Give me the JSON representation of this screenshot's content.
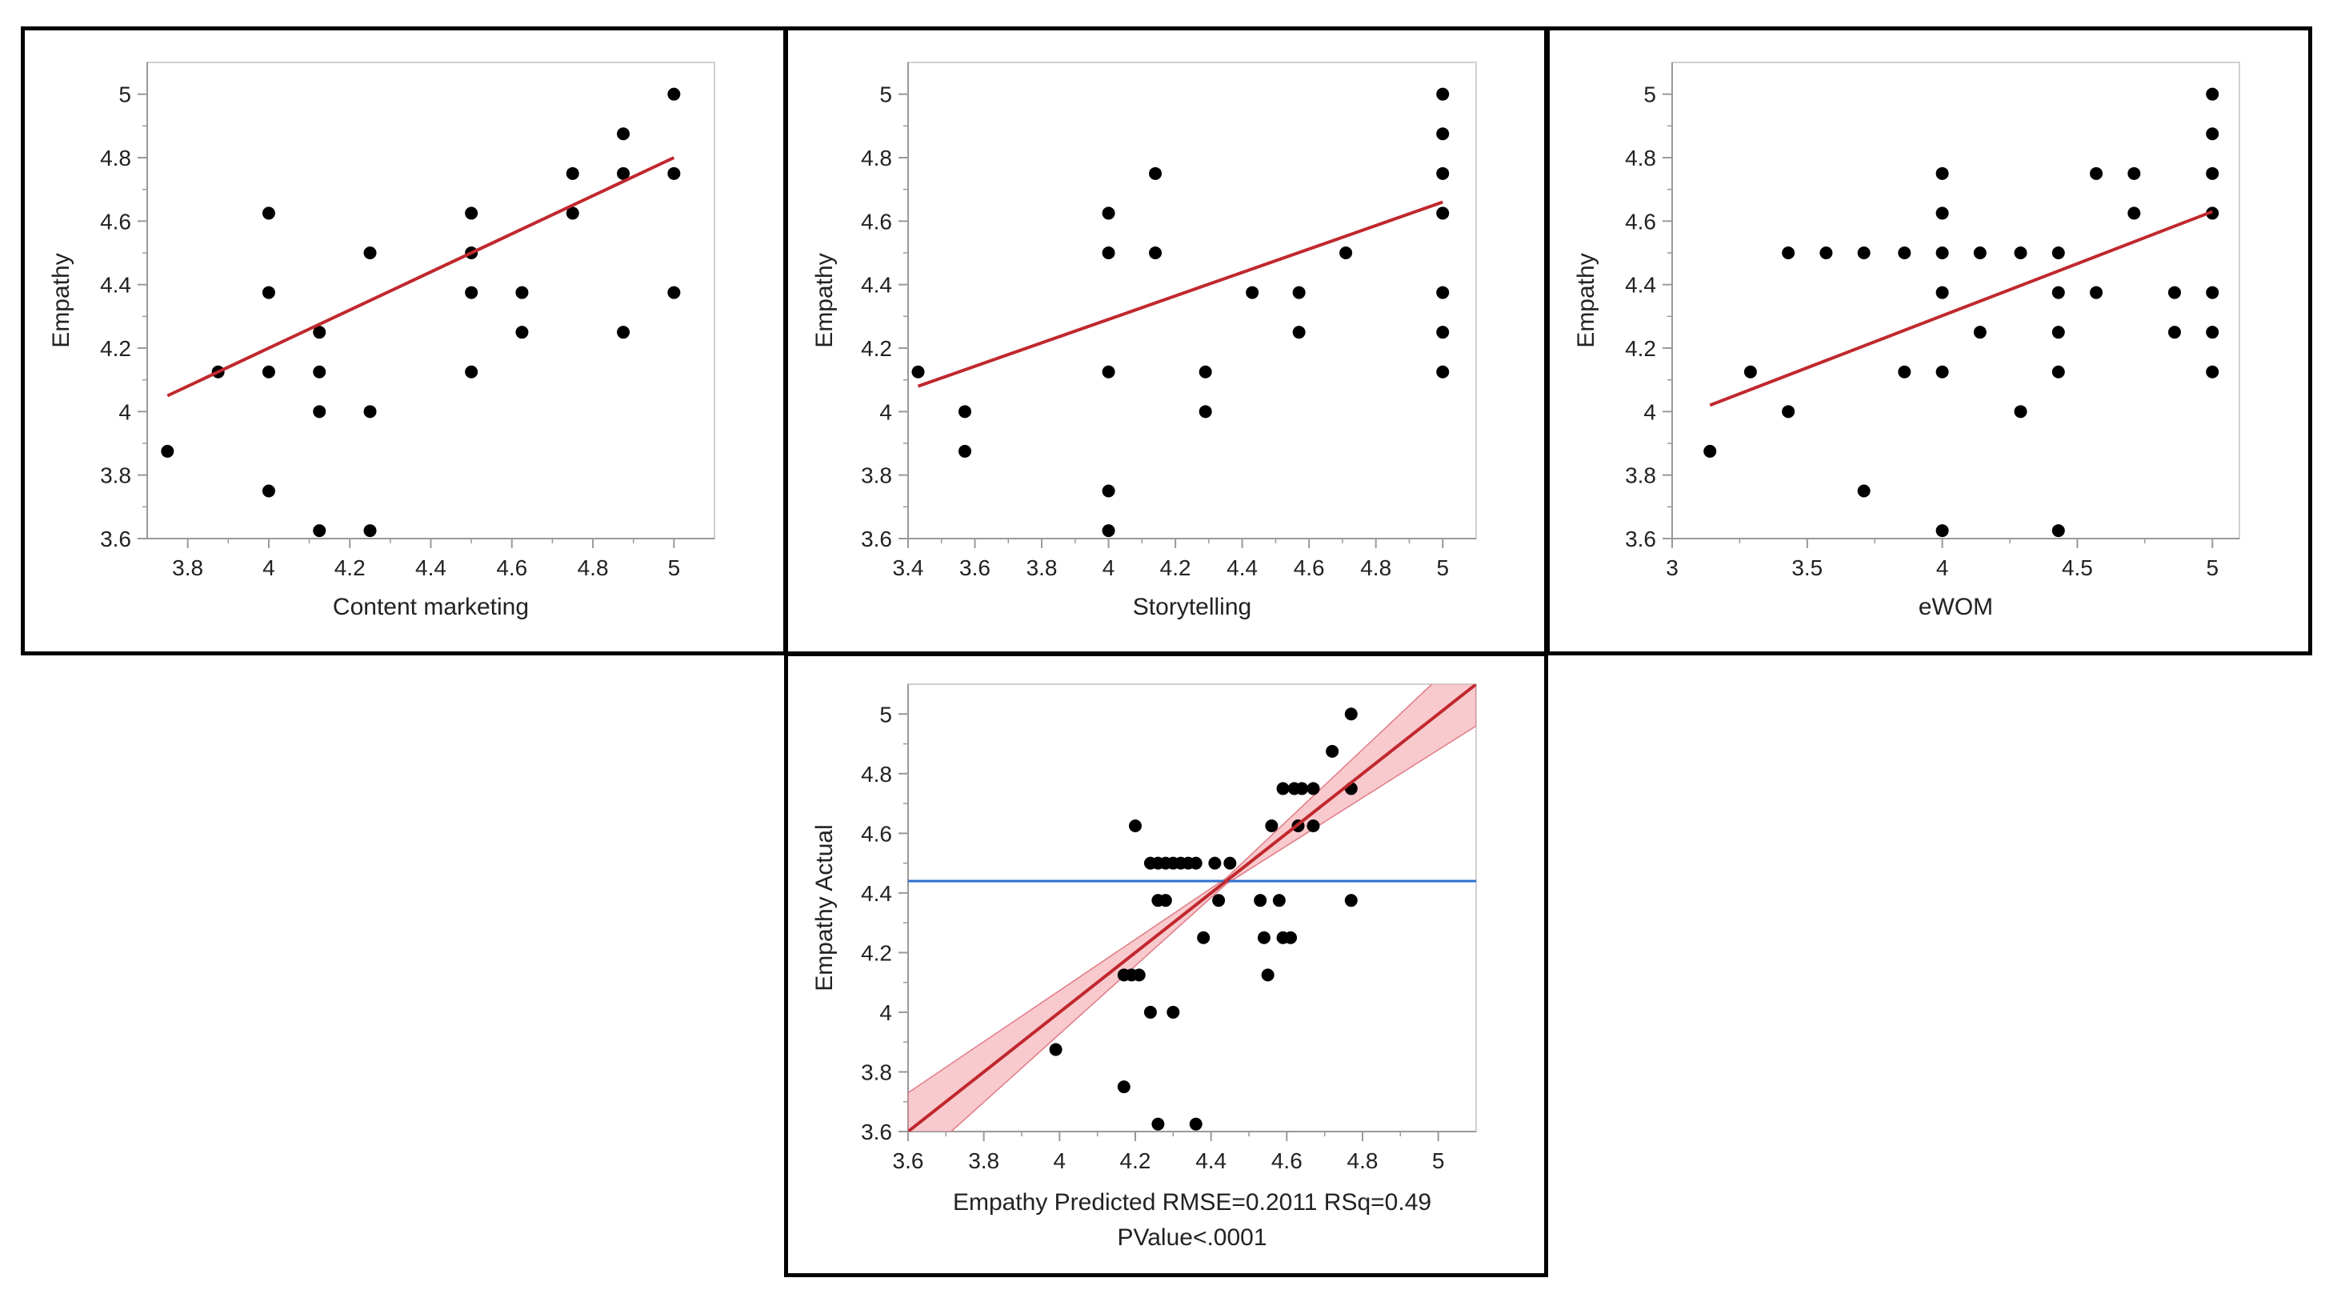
{
  "colors": {
    "point": "#000000",
    "fit_line": "#c0282d",
    "confidence_band": "#f4a6ae",
    "mean_line": "#2e6fcf",
    "axis": "#999999"
  },
  "chart_data": [
    {
      "type": "scatter",
      "xlabel": "Content marketing",
      "ylabel": "Empathy",
      "xlim": [
        3.7,
        5.1
      ],
      "ylim": [
        3.6,
        5.1
      ],
      "x_ticks": [
        3.8,
        4,
        4.2,
        4.4,
        4.6,
        4.8,
        5
      ],
      "y_ticks": [
        3.6,
        3.8,
        4,
        4.2,
        4.4,
        4.6,
        4.8,
        5
      ],
      "x_tick_labels": [
        "3.8",
        "4",
        "4.2",
        "4.4",
        "4.6",
        "4.8",
        "5"
      ],
      "y_tick_labels": [
        "3.6",
        "3.8",
        "4",
        "4.2",
        "4.4",
        "4.6",
        "4.8",
        "5"
      ],
      "grid": false,
      "points": [
        [
          3.75,
          3.875
        ],
        [
          3.875,
          4.125
        ],
        [
          4.0,
          4.625
        ],
        [
          4.0,
          4.375
        ],
        [
          4.0,
          4.125
        ],
        [
          4.0,
          3.75
        ],
        [
          4.125,
          4.25
        ],
        [
          4.125,
          4.125
        ],
        [
          4.125,
          4.0
        ],
        [
          4.125,
          3.625
        ],
        [
          4.25,
          4.5
        ],
        [
          4.25,
          4.0
        ],
        [
          4.25,
          3.625
        ],
        [
          4.5,
          4.625
        ],
        [
          4.5,
          4.5
        ],
        [
          4.5,
          4.375
        ],
        [
          4.5,
          4.125
        ],
        [
          4.625,
          4.375
        ],
        [
          4.625,
          4.25
        ],
        [
          4.75,
          4.75
        ],
        [
          4.75,
          4.625
        ],
        [
          4.875,
          4.875
        ],
        [
          4.875,
          4.75
        ],
        [
          4.875,
          4.25
        ],
        [
          5.0,
          5.0
        ],
        [
          5.0,
          4.75
        ],
        [
          5.0,
          4.375
        ]
      ],
      "fit_line": {
        "x": [
          3.75,
          5.0
        ],
        "y": [
          4.05,
          4.8
        ]
      }
    },
    {
      "type": "scatter",
      "xlabel": "Storytelling",
      "ylabel": "Empathy",
      "xlim": [
        3.4,
        5.1
      ],
      "ylim": [
        3.6,
        5.1
      ],
      "x_ticks": [
        3.4,
        3.6,
        3.8,
        4,
        4.2,
        4.4,
        4.6,
        4.8,
        5
      ],
      "y_ticks": [
        3.6,
        3.8,
        4,
        4.2,
        4.4,
        4.6,
        4.8,
        5
      ],
      "x_tick_labels": [
        "3.4",
        "3.6",
        "3.8",
        "4",
        "4.2",
        "4.4",
        "4.6",
        "4.8",
        "5"
      ],
      "y_tick_labels": [
        "3.6",
        "3.8",
        "4",
        "4.2",
        "4.4",
        "4.6",
        "4.8",
        "5"
      ],
      "grid": false,
      "points": [
        [
          3.43,
          4.125
        ],
        [
          3.57,
          4.0
        ],
        [
          3.57,
          3.875
        ],
        [
          4.0,
          4.625
        ],
        [
          4.0,
          4.5
        ],
        [
          4.0,
          4.125
        ],
        [
          4.0,
          3.75
        ],
        [
          4.0,
          3.625
        ],
        [
          4.14,
          4.75
        ],
        [
          4.14,
          4.5
        ],
        [
          4.29,
          4.125
        ],
        [
          4.29,
          4.0
        ],
        [
          4.43,
          4.375
        ],
        [
          4.57,
          4.375
        ],
        [
          4.57,
          4.25
        ],
        [
          4.71,
          4.5
        ],
        [
          5.0,
          5.0
        ],
        [
          5.0,
          4.875
        ],
        [
          5.0,
          4.75
        ],
        [
          5.0,
          4.625
        ],
        [
          5.0,
          4.375
        ],
        [
          5.0,
          4.25
        ],
        [
          5.0,
          4.125
        ]
      ],
      "fit_line": {
        "x": [
          3.43,
          5.0
        ],
        "y": [
          4.08,
          4.66
        ]
      }
    },
    {
      "type": "scatter",
      "xlabel": "eWOM",
      "ylabel": "Empathy",
      "xlim": [
        3.0,
        5.1
      ],
      "ylim": [
        3.6,
        5.1
      ],
      "x_ticks": [
        3,
        3.5,
        4,
        4.5,
        5
      ],
      "y_ticks": [
        3.6,
        3.8,
        4,
        4.2,
        4.4,
        4.6,
        4.8,
        5
      ],
      "x_tick_labels": [
        "3",
        "3.5",
        "4",
        "4.5",
        "5"
      ],
      "y_tick_labels": [
        "3.6",
        "3.8",
        "4",
        "4.2",
        "4.4",
        "4.6",
        "4.8",
        "5"
      ],
      "grid": false,
      "points": [
        [
          3.14,
          3.875
        ],
        [
          3.29,
          4.125
        ],
        [
          3.43,
          4.5
        ],
        [
          3.43,
          4.0
        ],
        [
          3.57,
          4.5
        ],
        [
          3.71,
          4.5
        ],
        [
          3.71,
          3.75
        ],
        [
          3.86,
          4.5
        ],
        [
          3.86,
          4.125
        ],
        [
          4.0,
          4.75
        ],
        [
          4.0,
          4.625
        ],
        [
          4.0,
          4.5
        ],
        [
          4.0,
          4.375
        ],
        [
          4.0,
          4.125
        ],
        [
          4.0,
          3.625
        ],
        [
          4.14,
          4.5
        ],
        [
          4.14,
          4.25
        ],
        [
          4.29,
          4.5
        ],
        [
          4.29,
          4.0
        ],
        [
          4.43,
          4.5
        ],
        [
          4.43,
          4.375
        ],
        [
          4.43,
          4.25
        ],
        [
          4.43,
          4.125
        ],
        [
          4.43,
          3.625
        ],
        [
          4.57,
          4.75
        ],
        [
          4.57,
          4.375
        ],
        [
          4.71,
          4.75
        ],
        [
          4.71,
          4.625
        ],
        [
          4.86,
          4.375
        ],
        [
          4.86,
          4.25
        ],
        [
          5.0,
          5.0
        ],
        [
          5.0,
          4.875
        ],
        [
          5.0,
          4.75
        ],
        [
          5.0,
          4.625
        ],
        [
          5.0,
          4.375
        ],
        [
          5.0,
          4.25
        ],
        [
          5.0,
          4.125
        ]
      ],
      "fit_line": {
        "x": [
          3.14,
          5.0
        ],
        "y": [
          4.02,
          4.63
        ]
      }
    },
    {
      "type": "scatter",
      "xlabel": "Empathy Predicted RMSE=0.2011 RSq=0.49",
      "xlabel2": "PValue<.0001",
      "ylabel": "Empathy Actual",
      "xlim": [
        3.6,
        5.1
      ],
      "ylim": [
        3.6,
        5.1
      ],
      "x_ticks": [
        3.6,
        3.8,
        4,
        4.2,
        4.4,
        4.6,
        4.8,
        5
      ],
      "y_ticks": [
        3.6,
        3.8,
        4,
        4.2,
        4.4,
        4.6,
        4.8,
        5
      ],
      "x_tick_labels": [
        "3.6",
        "3.8",
        "4",
        "4.2",
        "4.4",
        "4.6",
        "4.8",
        "5"
      ],
      "y_tick_labels": [
        "3.6",
        "3.8",
        "4",
        "4.2",
        "4.4",
        "4.6",
        "4.8",
        "5"
      ],
      "grid": false,
      "points": [
        [
          3.99,
          3.875
        ],
        [
          4.17,
          4.125
        ],
        [
          4.19,
          4.125
        ],
        [
          4.21,
          4.125
        ],
        [
          4.17,
          3.75
        ],
        [
          4.2,
          4.625
        ],
        [
          4.24,
          4.5
        ],
        [
          4.26,
          4.5
        ],
        [
          4.28,
          4.5
        ],
        [
          4.3,
          4.5
        ],
        [
          4.32,
          4.5
        ],
        [
          4.34,
          4.5
        ],
        [
          4.36,
          4.5
        ],
        [
          4.26,
          4.375
        ],
        [
          4.28,
          4.375
        ],
        [
          4.24,
          4.0
        ],
        [
          4.3,
          4.0
        ],
        [
          4.26,
          3.625
        ],
        [
          4.36,
          3.625
        ],
        [
          4.38,
          4.25
        ],
        [
          4.41,
          4.5
        ],
        [
          4.42,
          4.375
        ],
        [
          4.45,
          4.5
        ],
        [
          4.53,
          4.375
        ],
        [
          4.54,
          4.25
        ],
        [
          4.55,
          4.125
        ],
        [
          4.56,
          4.625
        ],
        [
          4.58,
          4.375
        ],
        [
          4.59,
          4.25
        ],
        [
          4.61,
          4.25
        ],
        [
          4.59,
          4.75
        ],
        [
          4.62,
          4.75
        ],
        [
          4.64,
          4.75
        ],
        [
          4.67,
          4.75
        ],
        [
          4.63,
          4.625
        ],
        [
          4.67,
          4.625
        ],
        [
          4.72,
          4.875
        ],
        [
          4.77,
          5.0
        ],
        [
          4.77,
          4.75
        ],
        [
          4.77,
          4.375
        ]
      ],
      "fit_line": {
        "x": [
          3.6,
          5.1
        ],
        "y": [
          3.6,
          5.1
        ]
      },
      "confidence_band": {
        "x": [
          3.6,
          4.44,
          5.1
        ],
        "lower": [
          3.47,
          4.43,
          4.96
        ],
        "upper": [
          3.73,
          4.45,
          5.24
        ]
      },
      "mean_line": {
        "y": 4.44
      }
    }
  ]
}
